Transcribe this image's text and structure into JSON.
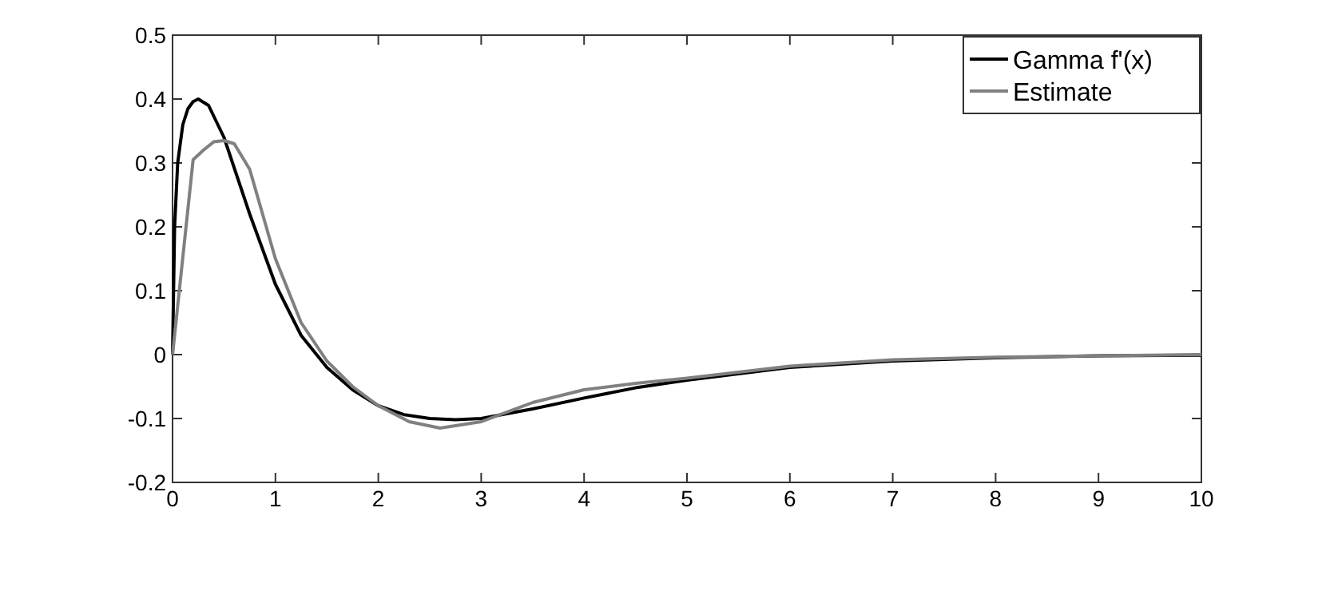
{
  "chart_data": {
    "type": "line",
    "xlim": [
      0,
      10
    ],
    "xticks": [
      0,
      1,
      2,
      3,
      4,
      5,
      6,
      7,
      8,
      9,
      10
    ],
    "ylim": [
      -0.2,
      0.5
    ],
    "yticks": [
      -0.2,
      -0.1,
      0,
      0.1,
      0.2,
      0.3,
      0.4,
      0.5
    ],
    "legend": "top right",
    "grid": false,
    "line_style": "solid",
    "series": [
      {
        "name": "Gamma f'(x)",
        "color": "#000000",
        "x": [
          0,
          0.02,
          0.05,
          0.1,
          0.15,
          0.2,
          0.25,
          0.35,
          0.5,
          0.75,
          1,
          1.25,
          1.5,
          1.75,
          2,
          2.25,
          2.5,
          2.75,
          3,
          3.5,
          4,
          4.5,
          5,
          6,
          7,
          8,
          9,
          10
        ],
        "values": [
          0,
          0.2,
          0.3,
          0.36,
          0.385,
          0.396,
          0.4,
          0.39,
          0.34,
          0.22,
          0.11,
          0.03,
          -0.02,
          -0.055,
          -0.08,
          -0.094,
          -0.1,
          -0.102,
          -0.1,
          -0.085,
          -0.068,
          -0.052,
          -0.04,
          -0.02,
          -0.01,
          -0.005,
          -0.002,
          -0.001
        ]
      },
      {
        "name": "Estimate",
        "color": "#808080",
        "x": [
          0,
          0.2,
          0.3,
          0.4,
          0.5,
          0.6,
          0.75,
          1,
          1.25,
          1.5,
          1.75,
          2,
          2.3,
          2.6,
          3,
          3.5,
          4,
          4.5,
          5,
          6,
          7,
          8,
          9,
          10
        ],
        "values": [
          0,
          0.305,
          0.32,
          0.333,
          0.335,
          0.33,
          0.29,
          0.15,
          0.05,
          -0.01,
          -0.05,
          -0.08,
          -0.105,
          -0.115,
          -0.105,
          -0.075,
          -0.055,
          -0.045,
          -0.037,
          -0.018,
          -0.008,
          -0.004,
          -0.002,
          0
        ]
      }
    ]
  }
}
